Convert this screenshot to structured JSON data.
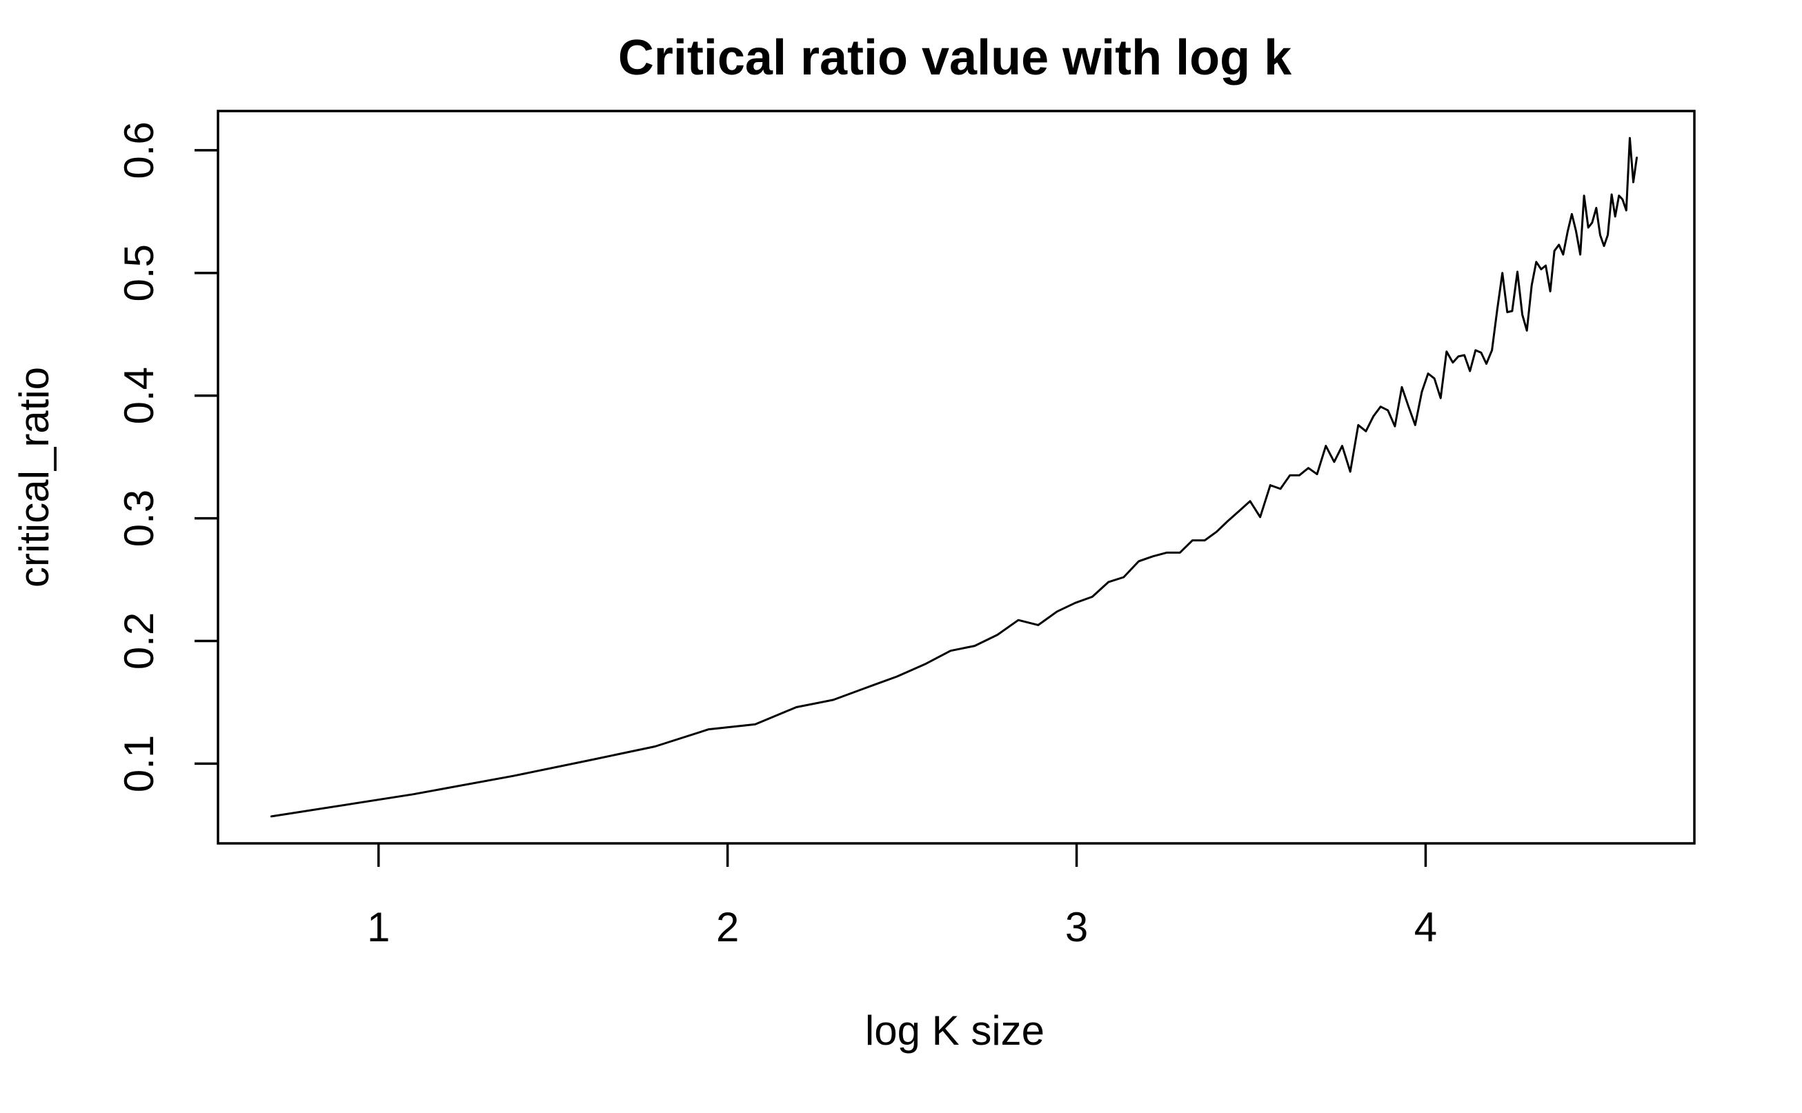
{
  "chart_data": {
    "type": "line",
    "title": "Critical ratio value with log k",
    "xlabel": "log K size",
    "ylabel": "critical_ratio",
    "xlim": [
      0.54,
      4.77
    ],
    "ylim": [
      0.035,
      0.632
    ],
    "xticks": [
      1,
      2,
      3,
      4
    ],
    "yticks": [
      0.1,
      0.2,
      0.3,
      0.4,
      0.5,
      0.6
    ],
    "xtick_labels": [
      "1",
      "2",
      "3",
      "4"
    ],
    "ytick_labels": [
      "0.1",
      "0.2",
      "0.3",
      "0.4",
      "0.5",
      "0.6"
    ],
    "grid": false,
    "series": [
      {
        "color": "#000000",
        "x": [
          0.693,
          1.099,
          1.386,
          1.609,
          1.792,
          1.946,
          2.079,
          2.197,
          2.303,
          2.398,
          2.485,
          2.565,
          2.639,
          2.708,
          2.773,
          2.833,
          2.89,
          2.944,
          2.996,
          3.045,
          3.091,
          3.135,
          3.178,
          3.219,
          3.258,
          3.296,
          3.332,
          3.367,
          3.401,
          3.434,
          3.466,
          3.497,
          3.526,
          3.555,
          3.584,
          3.611,
          3.638,
          3.664,
          3.689,
          3.714,
          3.738,
          3.761,
          3.784,
          3.807,
          3.829,
          3.85,
          3.871,
          3.892,
          3.912,
          3.932,
          3.951,
          3.97,
          3.989,
          4.007,
          4.025,
          4.043,
          4.06,
          4.078,
          4.094,
          4.111,
          4.127,
          4.143,
          4.159,
          4.174,
          4.19,
          4.205,
          4.22,
          4.234,
          4.248,
          4.263,
          4.277,
          4.29,
          4.304,
          4.317,
          4.331,
          4.344,
          4.357,
          4.369,
          4.382,
          4.394,
          4.407,
          4.419,
          4.431,
          4.443,
          4.454,
          4.466,
          4.477,
          4.489,
          4.5,
          4.511,
          4.522,
          4.533,
          4.543,
          4.554,
          4.564,
          4.575,
          4.585,
          4.595,
          4.605
        ],
        "y": [
          0.057,
          0.075,
          0.09,
          0.103,
          0.114,
          0.128,
          0.132,
          0.146,
          0.152,
          0.162,
          0.171,
          0.181,
          0.192,
          0.196,
          0.205,
          0.217,
          0.213,
          0.224,
          0.231,
          0.236,
          0.248,
          0.252,
          0.265,
          0.269,
          0.272,
          0.272,
          0.282,
          0.282,
          0.289,
          0.298,
          0.306,
          0.314,
          0.301,
          0.327,
          0.324,
          0.335,
          0.335,
          0.341,
          0.336,
          0.359,
          0.346,
          0.359,
          0.338,
          0.376,
          0.371,
          0.383,
          0.391,
          0.388,
          0.375,
          0.407,
          0.391,
          0.376,
          0.403,
          0.418,
          0.414,
          0.398,
          0.436,
          0.427,
          0.432,
          0.433,
          0.42,
          0.437,
          0.435,
          0.426,
          0.437,
          0.47,
          0.5,
          0.468,
          0.469,
          0.501,
          0.466,
          0.453,
          0.49,
          0.509,
          0.503,
          0.506,
          0.485,
          0.518,
          0.523,
          0.515,
          0.534,
          0.548,
          0.534,
          0.515,
          0.563,
          0.537,
          0.541,
          0.553,
          0.531,
          0.522,
          0.531,
          0.564,
          0.546,
          0.563,
          0.56,
          0.551,
          0.61,
          0.574,
          0.594
        ]
      }
    ]
  }
}
